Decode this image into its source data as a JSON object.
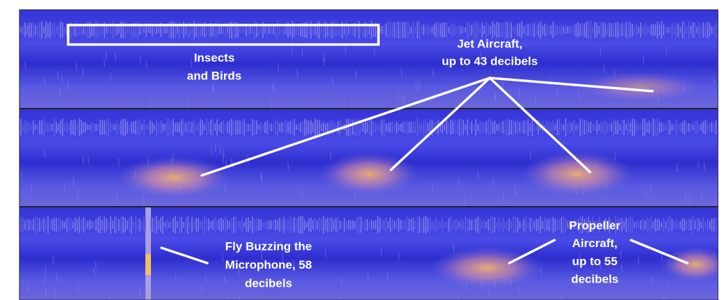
{
  "labels": {
    "insects": {
      "lines": [
        "Insects",
        "and Birds"
      ]
    },
    "jet": {
      "lines": [
        "Jet Aircraft,",
        "up to 43 decibels"
      ]
    },
    "fly": {
      "lines": [
        "Fly Buzzing the",
        "Microphone, 58",
        "decibels"
      ]
    },
    "propeller": {
      "lines": [
        "Propeller",
        "Aircraft,",
        "up to 55",
        "decibels"
      ]
    }
  }
}
